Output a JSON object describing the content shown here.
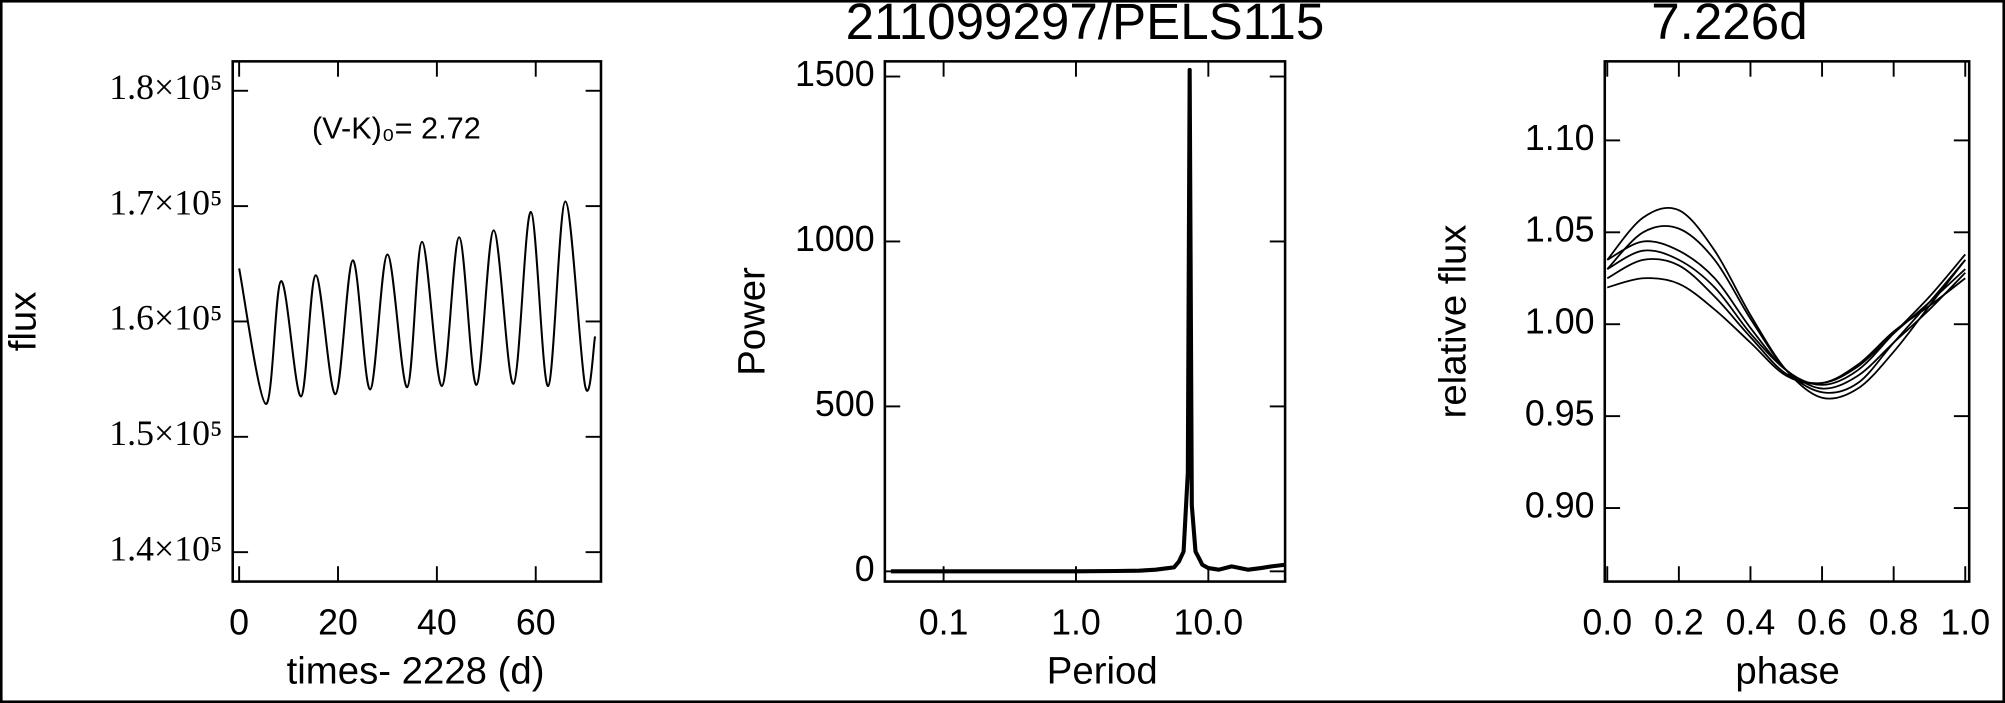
{
  "chart_data": [
    {
      "type": "line",
      "xlabel": "times- 2228 (d)",
      "ylabel": "flux",
      "annotation": "(V-K)₀= 2.72",
      "x": [
        0,
        5.4,
        8.5,
        12.5,
        15.5,
        19.5,
        23,
        26.5,
        30,
        34,
        37,
        41,
        44.5,
        48,
        51.5,
        55.5,
        59,
        62.5,
        66,
        70,
        72
      ],
      "values": [
        164600,
        152850,
        163500,
        153500,
        164000,
        153700,
        165300,
        154100,
        165800,
        154300,
        166900,
        154400,
        167300,
        154500,
        167900,
        154600,
        169500,
        154400,
        170400,
        154400,
        158700
      ],
      "color": "#000000",
      "xlim": [
        -1.3,
        73.2
      ],
      "xticks": [
        0,
        20,
        40,
        60
      ],
      "ylim": [
        137450,
        182550
      ],
      "yticks": [
        {
          "value": 140000,
          "label": "1.4×10⁵"
        },
        {
          "value": 150000,
          "label": "1.5×10⁵"
        },
        {
          "value": 160000,
          "label": "1.6×10⁵"
        },
        {
          "value": 170000,
          "label": "1.7×10⁵"
        },
        {
          "value": 180000,
          "label": "1.8×10⁵"
        }
      ]
    },
    {
      "type": "line",
      "title": "211099297/PELS115",
      "xlabel": "Period",
      "ylabel": "Power",
      "xscale": "log",
      "x": [
        0.04,
        0.1,
        0.5,
        1,
        2,
        3,
        4,
        5,
        5.5,
        6,
        6.5,
        7,
        7.226,
        7.5,
        8,
        8.5,
        9,
        10,
        12,
        15,
        20,
        25,
        30,
        38
      ],
      "values": [
        0,
        0,
        0,
        0,
        1,
        2,
        5,
        10,
        12,
        30,
        60,
        300,
        1520,
        200,
        60,
        40,
        20,
        10,
        5,
        15,
        5,
        10,
        15,
        20
      ],
      "color": "#000000",
      "xlim": [
        0.036,
        38
      ],
      "xticks": [
        0.1,
        {
          "value": 1,
          "label": "1.0"
        },
        {
          "value": 10,
          "label": "10.0"
        }
      ],
      "ylim": [
        -31,
        1546
      ],
      "yticks": [
        0,
        500,
        1000,
        1500
      ]
    },
    {
      "type": "line",
      "title": "7.226d",
      "xlabel": "phase",
      "ylabel": "relative flux",
      "x": [
        0,
        0.1,
        0.2,
        0.3,
        0.4,
        0.5,
        0.6,
        0.7,
        0.8,
        0.9,
        1.0
      ],
      "series": [
        {
          "color": "#000000",
          "values": [
            1.035,
            1.058,
            1.062,
            1.04,
            1.005,
            0.975,
            0.96,
            0.965,
            0.985,
            1.01,
            1.035
          ]
        },
        {
          "color": "#000000",
          "values": [
            1.03,
            1.05,
            1.052,
            1.035,
            1.003,
            0.975,
            0.963,
            0.968,
            0.99,
            1.012,
            1.035
          ]
        },
        {
          "color": "#000000",
          "values": [
            1.035,
            1.045,
            1.04,
            1.025,
            0.998,
            0.975,
            0.967,
            0.975,
            0.995,
            1.015,
            1.038
          ]
        },
        {
          "color": "#000000",
          "values": [
            1.025,
            1.035,
            1.032,
            1.015,
            0.993,
            0.973,
            0.968,
            0.977,
            0.995,
            1.012,
            1.03
          ]
        },
        {
          "color": "#000000",
          "values": [
            1.02,
            1.025,
            1.022,
            1.008,
            0.99,
            0.972,
            0.968,
            0.978,
            0.996,
            1.01,
            1.025
          ]
        },
        {
          "color": "#000000",
          "values": [
            1.03,
            1.04,
            1.035,
            1.02,
            0.995,
            0.975,
            0.965,
            0.972,
            0.99,
            1.008,
            1.028
          ]
        }
      ],
      "xlim": [
        -0.007,
        1.011
      ],
      "xticks": [
        {
          "value": 0,
          "label": "0.0"
        },
        0.2,
        0.4,
        0.6,
        0.8,
        {
          "value": 1,
          "label": "1.0"
        }
      ],
      "ylim": [
        0.86,
        1.143
      ],
      "yticks": [
        {
          "value": 0.9,
          "label": "0.90"
        },
        {
          "value": 0.95,
          "label": "0.95"
        },
        {
          "value": 1.0,
          "label": "1.00"
        },
        {
          "value": 1.05,
          "label": "1.05"
        },
        {
          "value": 1.1,
          "label": "1.10"
        }
      ]
    }
  ]
}
